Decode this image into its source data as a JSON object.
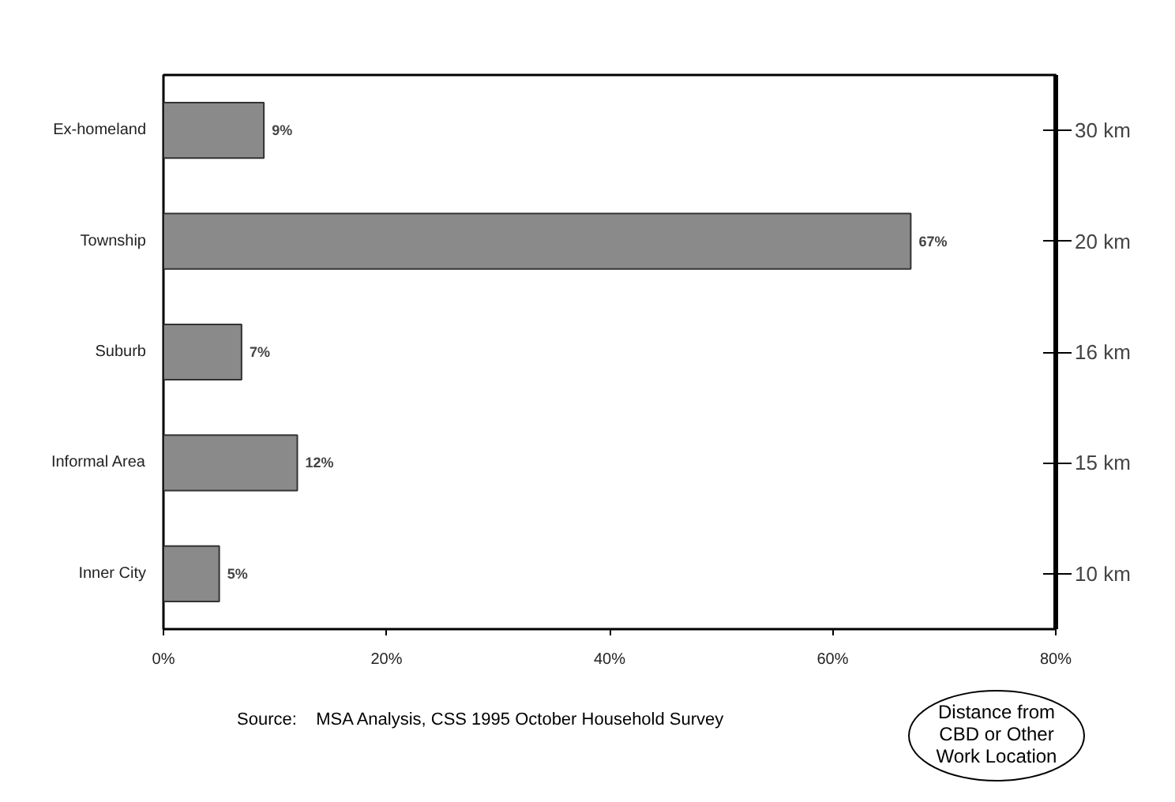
{
  "chart_data": {
    "type": "bar",
    "orientation": "horizontal",
    "categories": [
      "Ex-homeland",
      "Township",
      "Suburb",
      "Informal Area",
      "Inner City"
    ],
    "values": [
      9,
      67,
      7,
      12,
      5
    ],
    "value_labels": [
      "9%",
      "67%",
      "7%",
      "12%",
      "5%"
    ],
    "color": "#8a8a8a",
    "xlim": [
      0,
      80
    ],
    "xticks": [
      {
        "value": 0,
        "label": "0%"
      },
      {
        "value": 20,
        "label": "20%"
      },
      {
        "value": 40,
        "label": "40%"
      },
      {
        "value": 60,
        "label": "60%"
      },
      {
        "value": 80,
        "label": "80%"
      }
    ],
    "grid": false,
    "annotations": [
      "30 km",
      "20 km",
      "16 km",
      "15 km",
      "10 km",
      "Source:    MSA Analysis, CSS 1995 October Household Survey",
      "Distance from CBD or Other Work Location"
    ]
  }
}
